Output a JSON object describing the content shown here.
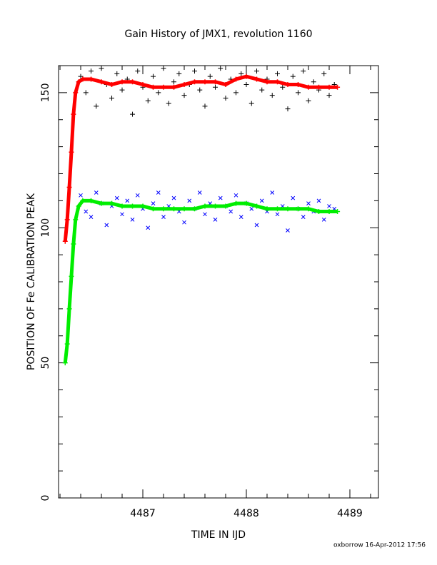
{
  "chart_data": {
    "type": "scatter",
    "title": "Gain History of JMX1, revolution 1160",
    "xlabel": "TIME IN IJD",
    "ylabel": "POSITION OF Fe CALIBRATION PEAK",
    "footer": "oxborrow 16-Apr-2012 17:56",
    "xlim": [
      4486.186,
      4489.276
    ],
    "ylim": [
      0,
      160
    ],
    "xticks": [
      4487,
      4488,
      4489
    ],
    "yticks": [
      0,
      50,
      100,
      150
    ],
    "xminorticks": [
      4486.2,
      4486.4,
      4486.6,
      4486.8,
      4487.2,
      4487.4,
      4487.6,
      4487.8,
      4488.2,
      4488.4,
      4488.6,
      4488.8,
      4489.2
    ],
    "yminorticks": [
      10,
      20,
      30,
      40,
      60,
      70,
      80,
      90,
      110,
      120,
      130,
      140
    ],
    "series": [
      {
        "color": "#000000",
        "marker": "+",
        "connect": false,
        "x": [
          4486.4,
          4486.45,
          4486.5,
          4486.55,
          4486.6,
          4486.65,
          4486.7,
          4486.75,
          4486.8,
          4486.85,
          4486.9,
          4486.95,
          4487.0,
          4487.05,
          4487.1,
          4487.15,
          4487.2,
          4487.25,
          4487.3,
          4487.35,
          4487.4,
          4487.45,
          4487.5,
          4487.55,
          4487.6,
          4487.65,
          4487.7,
          4487.75,
          4487.8,
          4487.85,
          4487.9,
          4487.95,
          4488.0,
          4488.05,
          4488.1,
          4488.15,
          4488.2,
          4488.25,
          4488.3,
          4488.35,
          4488.4,
          4488.45,
          4488.5,
          4488.55,
          4488.6,
          4488.65,
          4488.7,
          4488.75,
          4488.8,
          4488.85
        ],
        "values": [
          156,
          150,
          158,
          145,
          159,
          153,
          148,
          157,
          151,
          155,
          142,
          158,
          152,
          147,
          156,
          150,
          159,
          146,
          154,
          157,
          149,
          153,
          158,
          151,
          145,
          156,
          152,
          159,
          148,
          155,
          150,
          157,
          153,
          146,
          158,
          151,
          155,
          149,
          157,
          152,
          144,
          156,
          150,
          158,
          147,
          154,
          151,
          157,
          149,
          153
        ]
      },
      {
        "color": "#0000ff",
        "marker": "x",
        "connect": false,
        "x": [
          4486.4,
          4486.45,
          4486.5,
          4486.55,
          4486.6,
          4486.65,
          4486.7,
          4486.75,
          4486.8,
          4486.85,
          4486.9,
          4486.95,
          4487.0,
          4487.05,
          4487.1,
          4487.15,
          4487.2,
          4487.25,
          4487.3,
          4487.35,
          4487.4,
          4487.45,
          4487.5,
          4487.55,
          4487.6,
          4487.65,
          4487.7,
          4487.75,
          4487.8,
          4487.85,
          4487.9,
          4487.95,
          4488.0,
          4488.05,
          4488.1,
          4488.15,
          4488.2,
          4488.25,
          4488.3,
          4488.35,
          4488.4,
          4488.45,
          4488.5,
          4488.55,
          4488.6,
          4488.65,
          4488.7,
          4488.75,
          4488.8,
          4488.85
        ],
        "values": [
          112,
          106,
          104,
          113,
          109,
          101,
          108,
          111,
          105,
          110,
          103,
          112,
          107,
          100,
          109,
          113,
          104,
          108,
          111,
          106,
          102,
          110,
          107,
          113,
          105,
          109,
          103,
          111,
          108,
          106,
          112,
          104,
          109,
          107,
          101,
          110,
          106,
          113,
          105,
          108,
          99,
          111,
          107,
          104,
          109,
          106,
          110,
          103,
          108,
          107
        ]
      },
      {
        "color": "#ff0000",
        "marker": "+",
        "connect": true,
        "x": [
          4486.25,
          4486.27,
          4486.29,
          4486.31,
          4486.33,
          4486.35,
          4486.38,
          4486.42,
          4486.5,
          4486.6,
          4486.7,
          4486.8,
          4486.9,
          4487.0,
          4487.1,
          4487.2,
          4487.3,
          4487.4,
          4487.5,
          4487.6,
          4487.7,
          4487.8,
          4487.9,
          4488.0,
          4488.1,
          4488.2,
          4488.3,
          4488.4,
          4488.5,
          4488.6,
          4488.7,
          4488.8,
          4488.88
        ],
        "values": [
          95,
          103,
          115,
          128,
          142,
          150,
          154,
          155,
          155,
          154,
          153,
          154,
          154,
          153,
          152,
          152,
          152,
          153,
          154,
          154,
          154,
          153,
          155,
          156,
          155,
          154,
          154,
          153,
          153,
          152,
          152,
          152,
          152
        ]
      },
      {
        "color": "#00ee00",
        "marker": "+",
        "connect": true,
        "x": [
          4486.25,
          4486.27,
          4486.29,
          4486.31,
          4486.33,
          4486.35,
          4486.38,
          4486.42,
          4486.5,
          4486.6,
          4486.7,
          4486.8,
          4486.9,
          4487.0,
          4487.1,
          4487.2,
          4487.3,
          4487.4,
          4487.5,
          4487.6,
          4487.7,
          4487.8,
          4487.9,
          4488.0,
          4488.1,
          4488.2,
          4488.3,
          4488.4,
          4488.5,
          4488.6,
          4488.7,
          4488.8,
          4488.88
        ],
        "values": [
          50,
          57,
          70,
          82,
          94,
          103,
          108,
          110,
          110,
          109,
          109,
          108,
          108,
          108,
          107,
          107,
          107,
          107,
          107,
          108,
          108,
          108,
          109,
          109,
          108,
          107,
          107,
          107,
          107,
          107,
          106,
          106,
          106
        ]
      }
    ]
  }
}
